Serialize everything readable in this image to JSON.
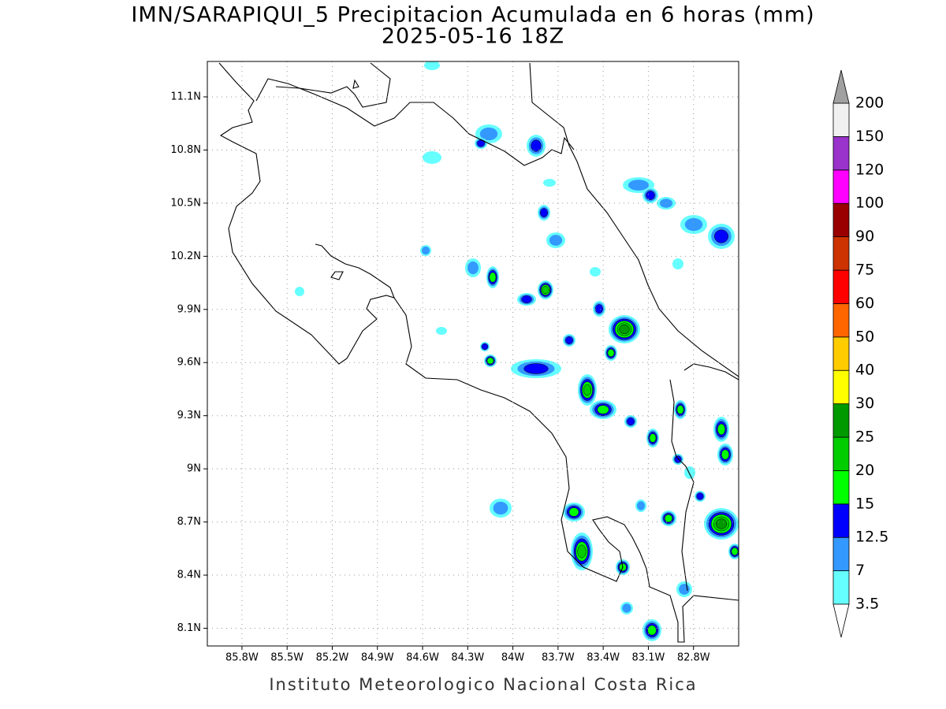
{
  "title": "IMN/SARAPIQUI_5 Precipitacion Acumulada en 6 horas (mm)",
  "subtitle": "2025-05-16 18Z",
  "footer": "Instituto Meteorologico Nacional Costa Rica",
  "map": {
    "xlim": [
      -86.03,
      -82.5
    ],
    "ylim": [
      8.0,
      11.3
    ],
    "grid": true,
    "xticks": [
      {
        "value": -85.8,
        "label": "85.8W"
      },
      {
        "value": -85.5,
        "label": "85.5W"
      },
      {
        "value": -85.2,
        "label": "85.2W"
      },
      {
        "value": -84.9,
        "label": "84.9W"
      },
      {
        "value": -84.6,
        "label": "84.6W"
      },
      {
        "value": -84.3,
        "label": "84.3W"
      },
      {
        "value": -84.0,
        "label": "84W"
      },
      {
        "value": -83.7,
        "label": "83.7W"
      },
      {
        "value": -83.4,
        "label": "83.4W"
      },
      {
        "value": -83.1,
        "label": "83.1W"
      },
      {
        "value": -82.8,
        "label": "82.8W"
      }
    ],
    "yticks": [
      {
        "value": 8.1,
        "label": "8.1N"
      },
      {
        "value": 8.4,
        "label": "8.4N"
      },
      {
        "value": 8.7,
        "label": "8.7N"
      },
      {
        "value": 9.0,
        "label": "9N"
      },
      {
        "value": 9.3,
        "label": "9.3N"
      },
      {
        "value": 9.6,
        "label": "9.6N"
      },
      {
        "value": 9.9,
        "label": "9.9N"
      },
      {
        "value": 10.2,
        "label": "10.2N"
      },
      {
        "value": 10.5,
        "label": "10.5N"
      },
      {
        "value": 10.8,
        "label": "10.8N"
      },
      {
        "value": 11.1,
        "label": "11.1N"
      }
    ]
  },
  "colorbar": {
    "levels": [
      3.5,
      7,
      12.5,
      15,
      20,
      25,
      30,
      40,
      50,
      60,
      75,
      90,
      100,
      120,
      150,
      200
    ],
    "colors": [
      "#ffffff",
      "#66ffff",
      "#3399ff",
      "#0000ff",
      "#00ff00",
      "#00cc00",
      "#009900",
      "#ffff00",
      "#ffcc00",
      "#ff6600",
      "#ff0000",
      "#cc3300",
      "#990000",
      "#ff00ff",
      "#9933cc",
      "#f0f0f0",
      "#a0a0a0"
    ]
  }
}
